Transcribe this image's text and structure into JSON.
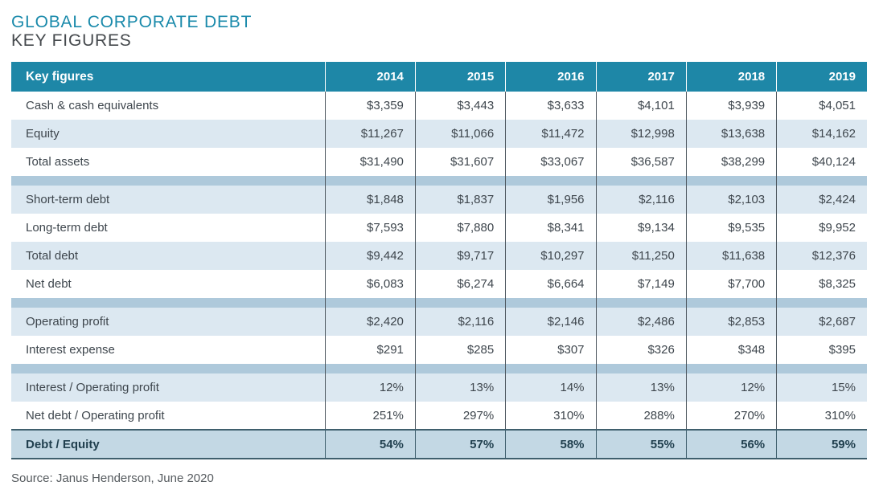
{
  "title": "GLOBAL CORPORATE DEBT",
  "subtitle": "KEY FIGURES",
  "source": "Source: Janus Henderson, June 2020",
  "colors": {
    "header_bg": "#1e87a7",
    "title_teal": "#1a8aab",
    "row_alt_bg": "#dce8f1",
    "section_band": "#aec9db",
    "total_row_bg": "#c3d8e4",
    "total_row_border": "#3f5f6d",
    "column_divider": "#4d575f",
    "body_text": "#3e464d"
  },
  "table": {
    "header": [
      "Key figures",
      "2014",
      "2015",
      "2016",
      "2017",
      "2018",
      "2019"
    ],
    "sections": [
      {
        "rows": [
          {
            "label": "Cash & cash equivalents",
            "values": [
              "$3,359",
              "$3,443",
              "$3,633",
              "$4,101",
              "$3,939",
              "$4,051"
            ]
          },
          {
            "label": "Equity",
            "values": [
              "$11,267",
              "$11,066",
              "$11,472",
              "$12,998",
              "$13,638",
              "$14,162"
            ]
          },
          {
            "label": "Total assets",
            "values": [
              "$31,490",
              "$31,607",
              "$33,067",
              "$36,587",
              "$38,299",
              "$40,124"
            ]
          }
        ]
      },
      {
        "rows": [
          {
            "label": "Short-term debt",
            "values": [
              "$1,848",
              "$1,837",
              "$1,956",
              "$2,116",
              "$2,103",
              "$2,424"
            ]
          },
          {
            "label": "Long-term debt",
            "values": [
              "$7,593",
              "$7,880",
              "$8,341",
              "$9,134",
              "$9,535",
              "$9,952"
            ]
          },
          {
            "label": "Total debt",
            "values": [
              "$9,442",
              "$9,717",
              "$10,297",
              "$11,250",
              "$11,638",
              "$12,376"
            ]
          },
          {
            "label": "Net debt",
            "values": [
              "$6,083",
              "$6,274",
              "$6,664",
              "$7,149",
              "$7,700",
              "$8,325"
            ]
          }
        ]
      },
      {
        "rows": [
          {
            "label": "Operating profit",
            "values": [
              "$2,420",
              "$2,116",
              "$2,146",
              "$2,486",
              "$2,853",
              "$2,687"
            ]
          },
          {
            "label": "Interest expense",
            "values": [
              "$291",
              "$285",
              "$307",
              "$326",
              "$348",
              "$395"
            ]
          }
        ]
      },
      {
        "rows": [
          {
            "label": "Interest / Operating profit",
            "values": [
              "12%",
              "13%",
              "14%",
              "13%",
              "12%",
              "15%"
            ]
          },
          {
            "label": "Net debt / Operating profit",
            "values": [
              "251%",
              "297%",
              "310%",
              "288%",
              "270%",
              "310%"
            ]
          }
        ]
      }
    ],
    "total_row": {
      "label": "Debt / Equity",
      "values": [
        "54%",
        "57%",
        "58%",
        "55%",
        "56%",
        "59%"
      ]
    }
  },
  "chart_data": {
    "type": "table",
    "title": "GLOBAL CORPORATE DEBT — KEY FIGURES",
    "columns": [
      "Key figures",
      "2014",
      "2015",
      "2016",
      "2017",
      "2018",
      "2019"
    ],
    "rows": [
      [
        "Cash & cash equivalents",
        "$3,359",
        "$3,443",
        "$3,633",
        "$4,101",
        "$3,939",
        "$4,051"
      ],
      [
        "Equity",
        "$11,267",
        "$11,066",
        "$11,472",
        "$12,998",
        "$13,638",
        "$14,162"
      ],
      [
        "Total assets",
        "$31,490",
        "$31,607",
        "$33,067",
        "$36,587",
        "$38,299",
        "$40,124"
      ],
      [
        "Short-term debt",
        "$1,848",
        "$1,837",
        "$1,956",
        "$2,116",
        "$2,103",
        "$2,424"
      ],
      [
        "Long-term debt",
        "$7,593",
        "$7,880",
        "$8,341",
        "$9,134",
        "$9,535",
        "$9,952"
      ],
      [
        "Total debt",
        "$9,442",
        "$9,717",
        "$10,297",
        "$11,250",
        "$11,638",
        "$12,376"
      ],
      [
        "Net debt",
        "$6,083",
        "$6,274",
        "$6,664",
        "$7,149",
        "$7,700",
        "$8,325"
      ],
      [
        "Operating profit",
        "$2,420",
        "$2,116",
        "$2,146",
        "$2,486",
        "$2,853",
        "$2,687"
      ],
      [
        "Interest expense",
        "$291",
        "$285",
        "$307",
        "$326",
        "$348",
        "$395"
      ],
      [
        "Interest / Operating profit",
        "12%",
        "13%",
        "14%",
        "13%",
        "12%",
        "15%"
      ],
      [
        "Net debt / Operating profit",
        "251%",
        "297%",
        "310%",
        "288%",
        "270%",
        "310%"
      ],
      [
        "Debt / Equity",
        "54%",
        "57%",
        "58%",
        "55%",
        "56%",
        "59%"
      ]
    ],
    "source": "Source: Janus Henderson, June 2020"
  }
}
